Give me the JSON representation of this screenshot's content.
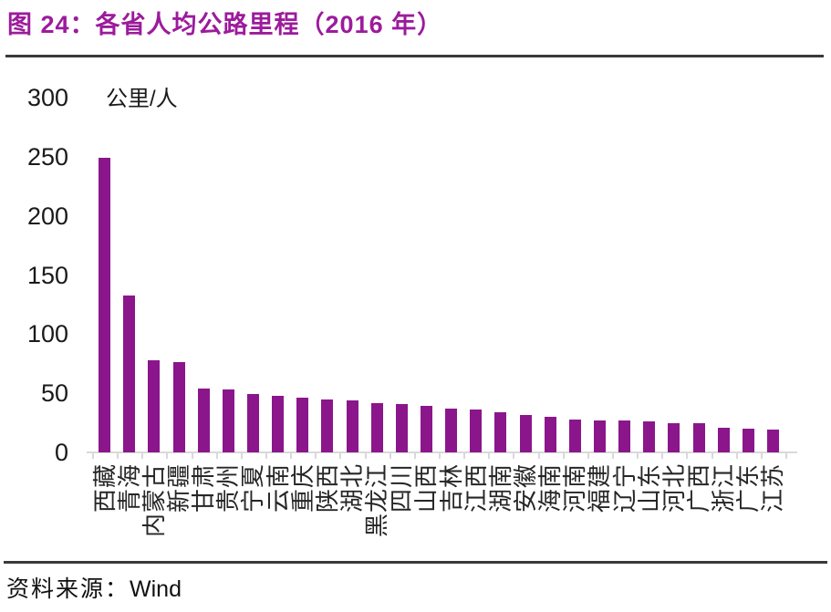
{
  "title": "图 24：各省人均公路里程（2016 年）",
  "source": {
    "label": "资料来源：",
    "value": "Wind"
  },
  "colors": {
    "title": "#9C1B9C",
    "bar": "#8B168B",
    "divider": "#3A3A3A",
    "axis": "#D9D9D9",
    "text": "#1A1A1A"
  },
  "chart_data": {
    "type": "bar",
    "figure_label": "图 24",
    "title": "各省人均公路里程（2016 年）",
    "unit_label": "公里/人",
    "xlabel": "",
    "ylabel": "公里/人",
    "categories": [
      "西藏",
      "青海",
      "内蒙古",
      "新疆",
      "甘肃",
      "贵州",
      "宁夏",
      "云南",
      "重庆",
      "陕西",
      "湖北",
      "黑龙江",
      "四川",
      "山西",
      "吉林",
      "江西",
      "湖南",
      "安徽",
      "海南",
      "河南",
      "福建",
      "辽宁",
      "山东",
      "河北",
      "广西",
      "浙江",
      "广东",
      "江苏"
    ],
    "values": [
      249,
      133,
      78,
      76,
      54,
      53,
      49,
      48,
      46,
      45,
      44,
      42,
      41,
      39,
      37,
      36,
      34,
      32,
      30,
      28,
      27,
      27,
      26,
      25,
      25,
      21,
      20,
      19
    ],
    "ylim": [
      0,
      300
    ],
    "yticks": [
      0,
      50,
      100,
      150,
      200,
      250,
      300
    ],
    "grid": false,
    "legend": "none",
    "bar_color": "#8B168B",
    "axis_color": "#D9D9D9"
  }
}
